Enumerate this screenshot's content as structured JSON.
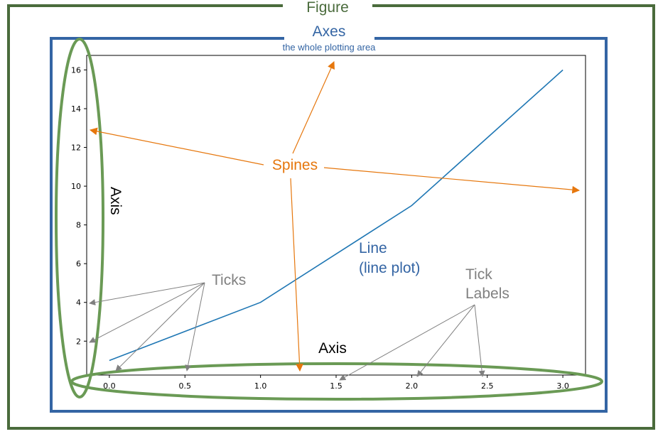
{
  "colors": {
    "figure": "#4a6b3c",
    "axes": "#3465a4",
    "line": "#1f77b4",
    "spines": "#e6770d",
    "ticks": "#808080",
    "axis_ellipse": "#6a9a55"
  },
  "labels": {
    "figure": "Figure",
    "axes": "Axes",
    "axes_subtitle": "the whole plotting area",
    "spines": "Spines",
    "axis_y": "Axis",
    "axis_x": "Axis",
    "ticks": "Ticks",
    "line_1": "Line",
    "line_2": "(line plot)",
    "tick_labels_1": "Tick",
    "tick_labels_2": "Labels"
  },
  "chart_data": {
    "type": "line",
    "x": [
      0,
      1,
      2,
      3
    ],
    "series": [
      {
        "values": [
          1,
          4,
          9,
          16
        ]
      }
    ],
    "xlim": [
      -0.15,
      3.15
    ],
    "ylim": [
      0.25,
      16.75
    ],
    "xticks": [
      "0.0",
      "0.5",
      "1.0",
      "1.5",
      "2.0",
      "2.5",
      "3.0"
    ],
    "yticks": [
      "2",
      "4",
      "6",
      "8",
      "10",
      "12",
      "14",
      "16"
    ],
    "grid": false
  }
}
